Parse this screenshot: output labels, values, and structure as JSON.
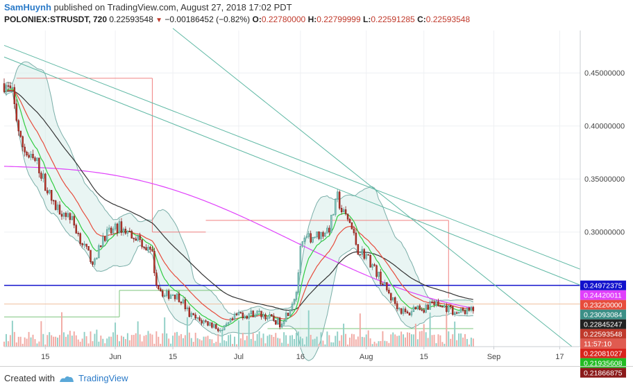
{
  "header": {
    "author": "SamHuynh",
    "published_text": "published on TradingView.com, August 27, 2018 17:02 PDT",
    "symbol": "POLONIEX:STRUSDT, 720",
    "last_price": "0.22593548",
    "change_arrow": "▼",
    "change": "−0.00186452 (−0.82%)",
    "o_label": "O:",
    "o_value": "0.22780000",
    "h_label": "H:",
    "h_value": "0.22799999",
    "l_label": "L:",
    "l_value": "0.22591285",
    "c_label": "C:",
    "c_value": "0.22593548"
  },
  "footer": {
    "created_with": "Created with",
    "brand": "TradingView"
  },
  "colors": {
    "up": "#8fc8c0",
    "down": "#c0392b",
    "vol_up": "#8fcfc6",
    "vol_down": "#f1a9a3",
    "bb": "#7aaea8",
    "bb_fill": "#d4ece8",
    "ema_fast": "#2ecc40",
    "ema_mid": "#e74c3c",
    "ema_slow": "#333333",
    "ma200": "#e040fb",
    "trend": "#5fb8a4",
    "hline": "#1111cc",
    "steps_red": "#f08080",
    "steps_green": "#7bc47b"
  },
  "chart_data": {
    "type": "candlestick",
    "symbol": "POLONIEX:STRUSDT",
    "interval": "720",
    "y_range": [
      0.192,
      0.49
    ],
    "x_range": [
      "2018-05-05",
      "2018-09-22"
    ],
    "price_ticks": [
      "0.45000000",
      "0.40000000",
      "0.35000000",
      "0.30000000"
    ],
    "x_ticks": [
      {
        "date": "2018-05-15",
        "label": "15"
      },
      {
        "date": "2018-06-01",
        "label": "Jun"
      },
      {
        "date": "2018-06-15",
        "label": "15"
      },
      {
        "date": "2018-07-01",
        "label": "Jul"
      },
      {
        "date": "2018-07-16",
        "label": "16"
      },
      {
        "date": "2018-08-01",
        "label": "Aug"
      },
      {
        "date": "2018-08-15",
        "label": "15"
      },
      {
        "date": "2018-09-01",
        "label": "Sep"
      },
      {
        "date": "2018-09-17",
        "label": "17"
      }
    ],
    "price_labels": [
      {
        "value": 0.24972375,
        "text": "0.24972375",
        "color": "#1111cc"
      },
      {
        "value": 0.24420011,
        "text": "0.24420011",
        "color": "#e040fb"
      },
      {
        "value": 0.2322,
        "text": "0.23220000",
        "color": "#e74c3c"
      },
      {
        "value": 0.23093084,
        "text": "0.23093084",
        "color": "#3b8f86"
      },
      {
        "value": 0.22845247,
        "text": "0.22845247",
        "color": "#222222"
      },
      {
        "value": 0.22593548,
        "text": "0.22593548",
        "color": "#c0392b"
      },
      {
        "value": 0.2233,
        "text": "11:57:10",
        "color": "#e05b50"
      },
      {
        "value": 0.22081027,
        "text": "0.22081027",
        "color": "#d9241c"
      },
      {
        "value": 0.21935608,
        "text": "0.21935608",
        "color": "#22bb22"
      },
      {
        "value": 0.21866875,
        "text": "0.21866875",
        "color": "#8b1a1a"
      }
    ],
    "close_path": [
      [
        "2018-05-05",
        0.44
      ],
      [
        "2018-05-07",
        0.43
      ],
      [
        "2018-05-09",
        0.385
      ],
      [
        "2018-05-11",
        0.37
      ],
      [
        "2018-05-13",
        0.365
      ],
      [
        "2018-05-15",
        0.345
      ],
      [
        "2018-05-17",
        0.325
      ],
      [
        "2018-05-19",
        0.32
      ],
      [
        "2018-05-21",
        0.315
      ],
      [
        "2018-05-23",
        0.298
      ],
      [
        "2018-05-25",
        0.282
      ],
      [
        "2018-05-27",
        0.27
      ],
      [
        "2018-05-29",
        0.296
      ],
      [
        "2018-05-31",
        0.3
      ],
      [
        "2018-06-02",
        0.305
      ],
      [
        "2018-06-04",
        0.3
      ],
      [
        "2018-06-06",
        0.296
      ],
      [
        "2018-06-08",
        0.288
      ],
      [
        "2018-06-10",
        0.278
      ],
      [
        "2018-06-11",
        0.252
      ],
      [
        "2018-06-13",
        0.24
      ],
      [
        "2018-06-15",
        0.242
      ],
      [
        "2018-06-17",
        0.237
      ],
      [
        "2018-06-19",
        0.222
      ],
      [
        "2018-06-21",
        0.217
      ],
      [
        "2018-06-23",
        0.215
      ],
      [
        "2018-06-25",
        0.212
      ],
      [
        "2018-06-27",
        0.206
      ],
      [
        "2018-06-29",
        0.215
      ],
      [
        "2018-07-01",
        0.223
      ],
      [
        "2018-07-03",
        0.222
      ],
      [
        "2018-07-05",
        0.224
      ],
      [
        "2018-07-07",
        0.222
      ],
      [
        "2018-07-09",
        0.218
      ],
      [
        "2018-07-11",
        0.214
      ],
      [
        "2018-07-13",
        0.225
      ],
      [
        "2018-07-15",
        0.244
      ],
      [
        "2018-07-16",
        0.282
      ],
      [
        "2018-07-17",
        0.292
      ],
      [
        "2018-07-19",
        0.296
      ],
      [
        "2018-07-21",
        0.298
      ],
      [
        "2018-07-23",
        0.304
      ],
      [
        "2018-07-25",
        0.333
      ],
      [
        "2018-07-26",
        0.32
      ],
      [
        "2018-07-28",
        0.309
      ],
      [
        "2018-07-30",
        0.283
      ],
      [
        "2018-08-01",
        0.278
      ],
      [
        "2018-08-03",
        0.265
      ],
      [
        "2018-08-05",
        0.252
      ],
      [
        "2018-08-07",
        0.238
      ],
      [
        "2018-08-09",
        0.228
      ],
      [
        "2018-08-11",
        0.222
      ],
      [
        "2018-08-13",
        0.23
      ],
      [
        "2018-08-15",
        0.228
      ],
      [
        "2018-08-17",
        0.234
      ],
      [
        "2018-08-19",
        0.23
      ],
      [
        "2018-08-21",
        0.228
      ],
      [
        "2018-08-23",
        0.224
      ],
      [
        "2018-08-25",
        0.226
      ],
      [
        "2018-08-27",
        0.226
      ]
    ],
    "volume_scale_max": 60,
    "horizontal_line": 0.24972375,
    "trendlines": [
      {
        "from": [
          "2018-05-05",
          0.476
        ],
        "to": [
          "2018-09-22",
          0.265
        ]
      },
      {
        "from": [
          "2018-05-05",
          0.465
        ],
        "to": [
          "2018-09-22",
          0.25
        ]
      },
      {
        "from": [
          "2018-06-15",
          0.492
        ],
        "to": [
          "2018-09-20",
          0.192
        ]
      }
    ]
  }
}
